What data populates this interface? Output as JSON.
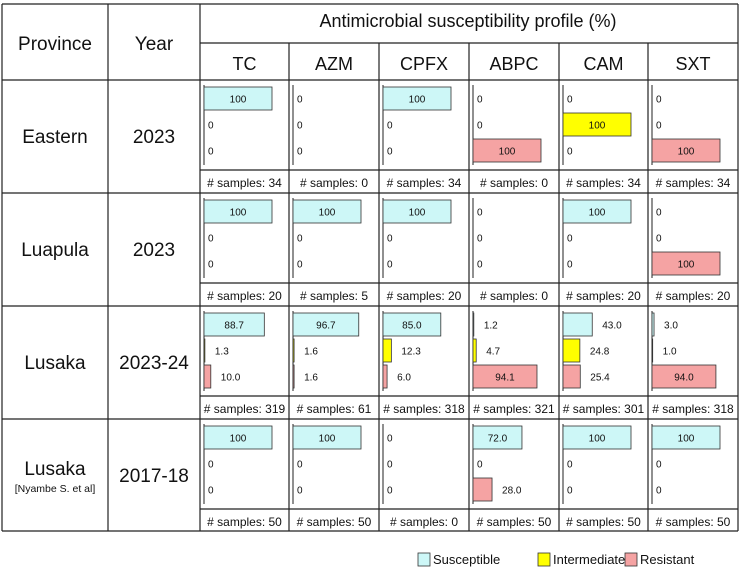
{
  "header": {
    "province": "Province",
    "year": "Year",
    "profile_title": "Antimicrobial susceptibility profile (%)"
  },
  "chart_data": {
    "type": "bar",
    "title": "Antimicrobial susceptibility profile (%)",
    "antibiotics": [
      "TC",
      "AZM",
      "CPFX",
      "ABPC",
      "CAM",
      "SXT"
    ],
    "categories": [
      "Susceptible",
      "Intermediate",
      "Resistant"
    ],
    "xlim": [
      0,
      100
    ],
    "colors": {
      "Susceptible": "#cdf7f7",
      "Intermediate": "#ffff00",
      "Resistant": "#f5a3a3"
    },
    "rows": [
      {
        "province": "Eastern",
        "note": "",
        "year": "2023",
        "cells": [
          {
            "values": [
              "100",
              "0",
              "0"
            ],
            "samples": "# samples: 34"
          },
          {
            "values": [
              "0",
              "0",
              "0"
            ],
            "samples": "# samples: 0"
          },
          {
            "values": [
              "100",
              "0",
              "0"
            ],
            "samples": "# samples: 34"
          },
          {
            "values": [
              "0",
              "0",
              "100"
            ],
            "samples": "# samples: 0"
          },
          {
            "values": [
              "0",
              "100",
              "0"
            ],
            "samples": "# samples: 34"
          },
          {
            "values": [
              "0",
              "0",
              "100"
            ],
            "samples": "# samples: 34"
          }
        ]
      },
      {
        "province": "Luapula",
        "note": "",
        "year": "2023",
        "cells": [
          {
            "values": [
              "100",
              "0",
              "0"
            ],
            "samples": "# samples: 20"
          },
          {
            "values": [
              "100",
              "0",
              "0"
            ],
            "samples": "# samples: 5"
          },
          {
            "values": [
              "100",
              "0",
              "0"
            ],
            "samples": "# samples: 20"
          },
          {
            "values": [
              "0",
              "0",
              "0"
            ],
            "samples": "# samples: 0"
          },
          {
            "values": [
              "100",
              "0",
              "0"
            ],
            "samples": "# samples: 20"
          },
          {
            "values": [
              "0",
              "0",
              "100"
            ],
            "samples": "# samples: 20"
          }
        ]
      },
      {
        "province": "Lusaka",
        "note": "",
        "year": "2023-24",
        "cells": [
          {
            "values": [
              "88.7",
              "1.3",
              "10.0"
            ],
            "samples": "# samples: 319"
          },
          {
            "values": [
              "96.7",
              "1.6",
              "1.6"
            ],
            "samples": "# samples: 61"
          },
          {
            "values": [
              "85.0",
              "12.3",
              "6.0"
            ],
            "samples": "# samples: 318"
          },
          {
            "values": [
              "1.2",
              "4.7",
              "94.1"
            ],
            "samples": "# samples: 321"
          },
          {
            "values": [
              "43.0",
              "24.8",
              "25.4"
            ],
            "samples": "# samples: 301"
          },
          {
            "values": [
              "3.0",
              "1.0",
              "94.0"
            ],
            "samples": "# samples: 318"
          }
        ]
      },
      {
        "province": "Lusaka",
        "note": "[Nyambe S. et al]",
        "year": "2017-18",
        "cells": [
          {
            "values": [
              "100",
              "0",
              "0"
            ],
            "samples": "# samples: 50"
          },
          {
            "values": [
              "100",
              "0",
              "0"
            ],
            "samples": "# samples: 50"
          },
          {
            "values": [
              "0",
              "0",
              "0"
            ],
            "samples": "# samples: 0"
          },
          {
            "values": [
              "72.0",
              "0",
              "28.0"
            ],
            "samples": "# samples: 50"
          },
          {
            "values": [
              "100",
              "0",
              "0"
            ],
            "samples": "# samples: 50"
          },
          {
            "values": [
              "100",
              "0",
              "0"
            ],
            "samples": "# samples: 50"
          }
        ]
      }
    ],
    "legend": [
      "Susceptible",
      "Intermediate",
      "Resistant"
    ],
    "legend_position": "bottom-right"
  }
}
